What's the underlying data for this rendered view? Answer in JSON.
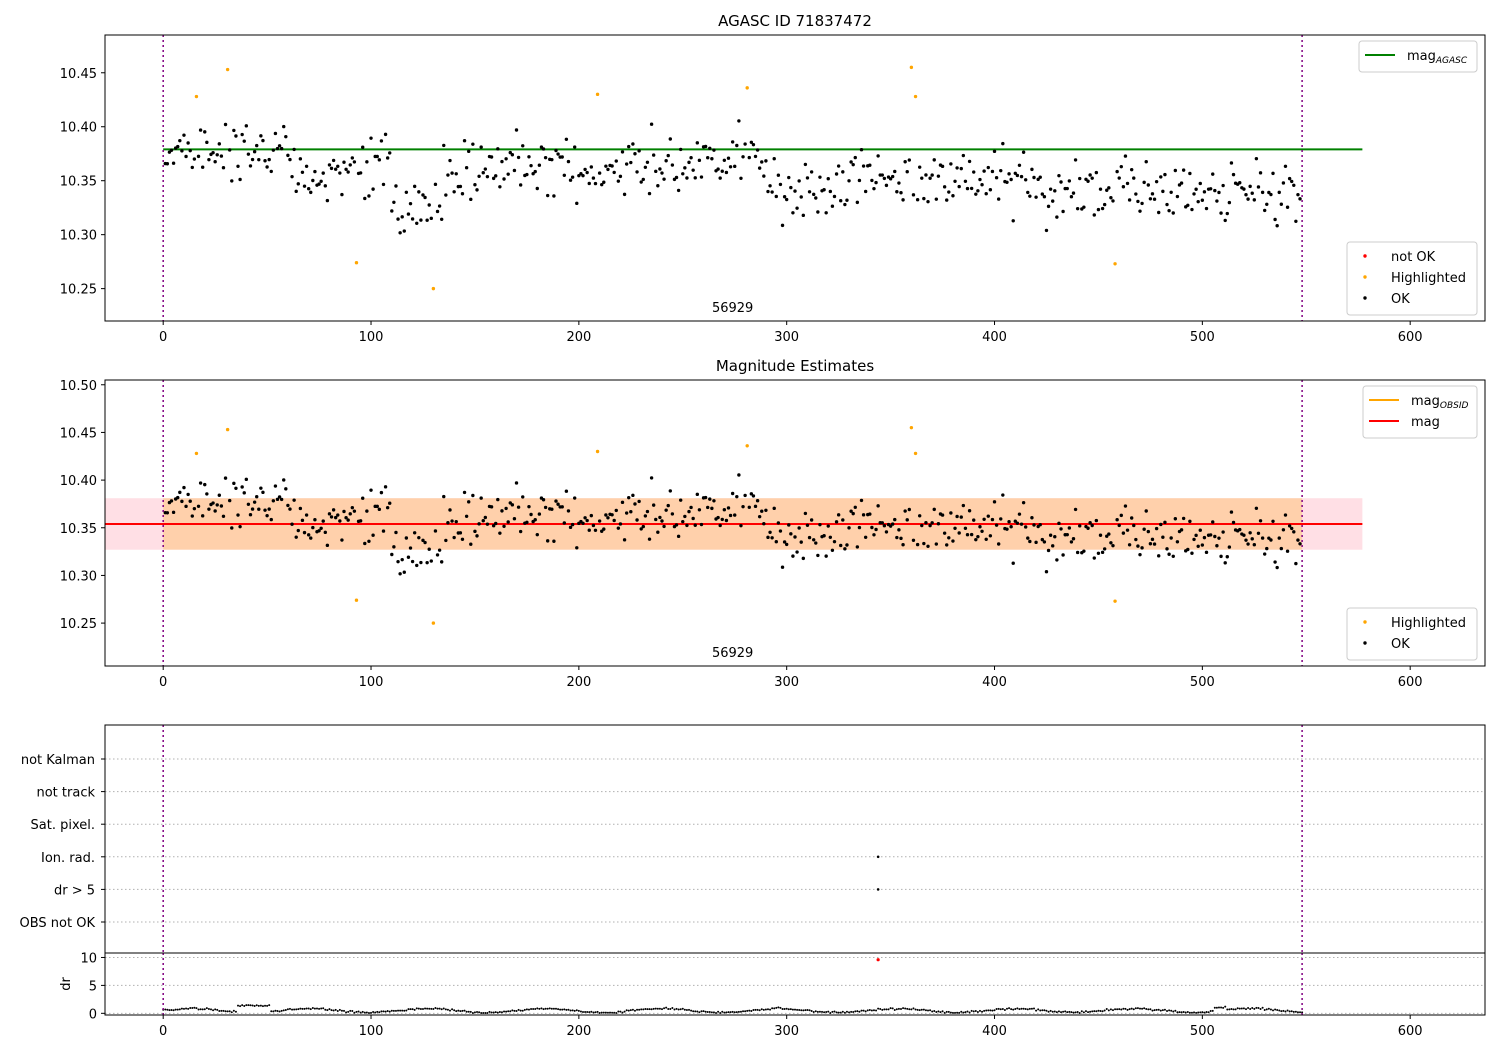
{
  "chart_data": [
    {
      "type": "scatter",
      "title": "AGASC ID 71837472",
      "annotation": "56929",
      "xlim": [
        -28,
        636
      ],
      "ylim": [
        10.22,
        10.485
      ],
      "xticks": [
        0,
        100,
        200,
        300,
        400,
        500,
        600
      ],
      "yticks": [
        10.25,
        10.3,
        10.35,
        10.4,
        10.45
      ],
      "vlines": [
        0,
        548
      ],
      "hline": {
        "y": 10.379,
        "x_range": [
          0,
          577
        ],
        "color": "#008000"
      },
      "legends": [
        {
          "position": "top-right",
          "entries": [
            {
              "label": "mag",
              "sub": "AGASC",
              "color": "#008000",
              "kind": "line"
            }
          ]
        },
        {
          "position": "bottom-right",
          "entries": [
            {
              "label": "not OK",
              "color": "#ff0000",
              "kind": "marker"
            },
            {
              "label": "Highlighted",
              "color": "#ffa500",
              "kind": "marker"
            },
            {
              "label": "OK",
              "color": "#000000",
              "kind": "marker"
            }
          ]
        }
      ],
      "highlighted": [
        [
          16,
          10.428
        ],
        [
          31,
          10.453
        ],
        [
          93,
          10.274
        ],
        [
          130,
          10.25
        ],
        [
          209,
          10.43
        ],
        [
          281,
          10.436
        ],
        [
          360,
          10.455
        ],
        [
          362,
          10.428
        ],
        [
          458,
          10.273
        ]
      ]
    },
    {
      "type": "scatter",
      "title": "Magnitude Estimates",
      "annotation": "56929",
      "xlim": [
        -28,
        636
      ],
      "ylim": [
        10.205,
        10.505
      ],
      "xticks": [
        0,
        100,
        200,
        300,
        400,
        500,
        600
      ],
      "yticks": [
        10.25,
        10.3,
        10.35,
        10.4,
        10.45,
        10.5
      ],
      "vlines": [
        0,
        548
      ],
      "hline": {
        "y": 10.354,
        "x_range": [
          -28,
          577
        ],
        "color": "#ff0000"
      },
      "bands": [
        {
          "y": [
            10.327,
            10.381
          ],
          "x_range": [
            -28,
            577
          ],
          "color": "#ffc0cb",
          "opacity": 0.5
        },
        {
          "y": [
            10.327,
            10.381
          ],
          "x_range": [
            0,
            548
          ],
          "color": "#ffa500",
          "opacity": 0.25
        }
      ],
      "legends": [
        {
          "position": "top-right",
          "entries": [
            {
              "label": "mag",
              "sub": "OBSID",
              "color": "#ffa500",
              "kind": "line"
            },
            {
              "label": "mag",
              "sub": "",
              "color": "#ff0000",
              "kind": "line"
            }
          ]
        },
        {
          "position": "bottom-right",
          "entries": [
            {
              "label": "Highlighted",
              "color": "#ffa500",
              "kind": "marker"
            },
            {
              "label": "OK",
              "color": "#000000",
              "kind": "marker"
            }
          ]
        }
      ],
      "highlighted": [
        [
          16,
          10.428
        ],
        [
          31,
          10.453
        ],
        [
          93,
          10.274
        ],
        [
          130,
          10.25
        ],
        [
          209,
          10.43
        ],
        [
          281,
          10.436
        ],
        [
          360,
          10.455
        ],
        [
          362,
          10.428
        ],
        [
          458,
          10.273
        ]
      ]
    },
    {
      "type": "scatter",
      "xlim": [
        -28,
        636
      ],
      "vlines": [
        0,
        548
      ],
      "categories": [
        "not Kalman",
        "not track",
        "Sat. pixel.",
        "Ion. rad.",
        "dr > 5",
        "OBS not OK"
      ],
      "flag_points": [
        {
          "category": "Ion. rad.",
          "x": 344
        },
        {
          "category": "dr > 5",
          "x": 344
        }
      ]
    },
    {
      "type": "scatter",
      "ylabel": "dr",
      "xlim": [
        -28,
        636
      ],
      "ylim": [
        -0.3,
        10.8
      ],
      "xticks": [
        0,
        100,
        200,
        300,
        400,
        500,
        600
      ],
      "yticks": [
        0,
        5,
        10
      ],
      "vlines": [
        0,
        548
      ],
      "notok_points": [
        [
          344,
          9.6
        ]
      ]
    }
  ]
}
